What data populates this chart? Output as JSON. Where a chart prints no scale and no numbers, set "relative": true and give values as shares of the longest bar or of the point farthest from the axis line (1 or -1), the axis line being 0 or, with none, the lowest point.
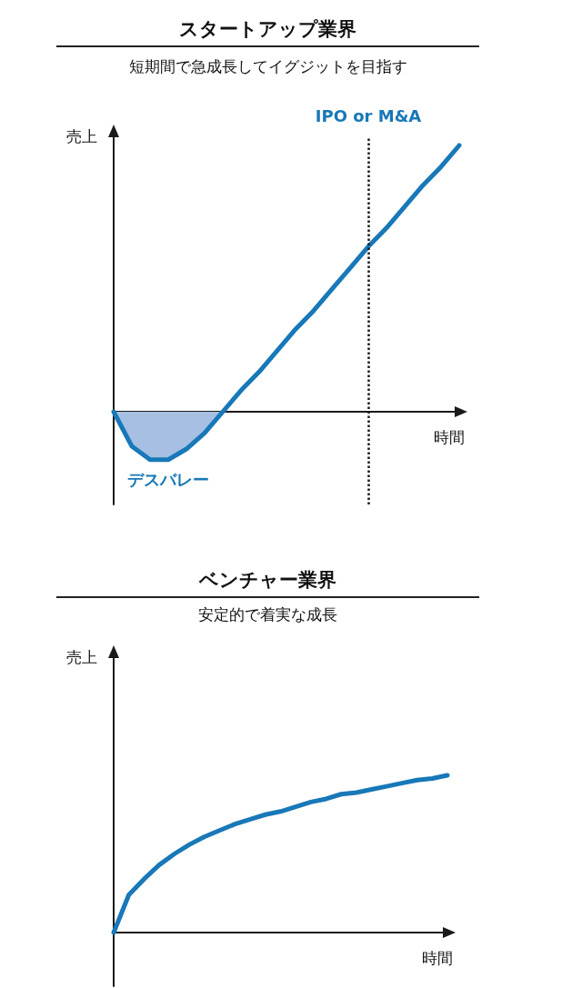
{
  "chart_data": [
    {
      "type": "line",
      "title": "スタートアップ業界",
      "subtitle": "短期間で急成長してイグジットを目指す",
      "xlabel": "時間",
      "ylabel": "売上",
      "relative": true,
      "marker": "none",
      "categories": [
        null,
        null,
        null,
        null,
        null,
        null,
        null,
        null,
        null,
        null,
        null,
        null,
        null,
        null,
        null,
        null,
        null,
        null,
        null,
        null
      ],
      "series": [
        {
          "type": "area",
          "color": "#a6bfe2",
          "values": [
            0,
            -0.13,
            -0.18,
            -0.18,
            -0.14,
            -0.08,
            0,
            null,
            null,
            null,
            null,
            null,
            null,
            null,
            null,
            null,
            null,
            null,
            null,
            null
          ]
        },
        {
          "type": "line",
          "color": "#1878b8",
          "values": [
            0,
            -0.13,
            -0.18,
            -0.18,
            -0.14,
            -0.08,
            0,
            0.08,
            0.15,
            0.23,
            0.31,
            0.38,
            0.46,
            0.54,
            0.62,
            0.69,
            0.77,
            0.85,
            0.92,
            1
          ]
        }
      ],
      "annotations": [
        "IPO or M&A",
        "デスバレー"
      ]
    },
    {
      "type": "line",
      "title": "ベンチャー業界",
      "subtitle": "安定的で着実な成長",
      "xlabel": "時間",
      "ylabel": "売上",
      "relative": true,
      "marker": "none",
      "categories": [
        null,
        null,
        null,
        null,
        null,
        null,
        null,
        null,
        null,
        null,
        null,
        null,
        null,
        null,
        null,
        null,
        null,
        null,
        null,
        null,
        null,
        null,
        null
      ],
      "series": [
        {
          "type": "line",
          "color": "#1878b8",
          "values": [
            0,
            0.24,
            0.34,
            0.43,
            0.5,
            0.56,
            0.61,
            0.65,
            0.69,
            0.72,
            0.75,
            0.77,
            0.8,
            0.83,
            0.85,
            0.88,
            0.89,
            0.91,
            0.93,
            0.95,
            0.97,
            0.98,
            1
          ]
        }
      ]
    }
  ]
}
